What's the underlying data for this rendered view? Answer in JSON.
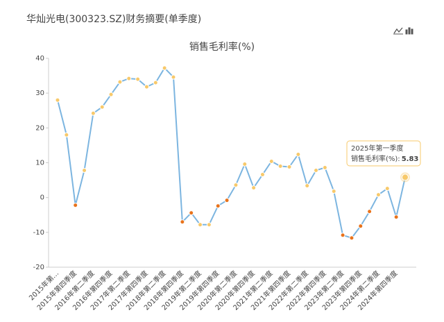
{
  "header": {
    "title": "华灿光电(300323.SZ)财务摘要(单季度)"
  },
  "chart_data": {
    "type": "line",
    "title": "销售毛利率(%)",
    "categories": [
      "2015年第…",
      null,
      "2015年第四季度",
      null,
      "2016年第二季度",
      null,
      "2016年第四季度",
      null,
      "2017年第二季度",
      null,
      "2017年第四季度",
      null,
      "2018年第二季度",
      null,
      "2018年第四季度",
      null,
      "2019年第二季度",
      null,
      "2019年第四季度",
      null,
      "2020年第二季度",
      null,
      "2020年第四季度",
      null,
      "2021年第二季度",
      null,
      "2021年第四季度",
      null,
      "2022年第二季度",
      null,
      "2022年第四季度",
      null,
      "2023年第二季度",
      null,
      "2023年第四季度",
      null,
      "2024年第二季度",
      null,
      "2024年第四季度",
      "2025年第一季度"
    ],
    "series": [
      {
        "name": "销售毛利率(%)",
        "color": "#7cb5e0",
        "values": [
          28,
          18,
          -2.2,
          7.8,
          24.2,
          26,
          29.6,
          33.2,
          34.2,
          34,
          31.8,
          33,
          37.2,
          34.6,
          -7,
          -4.4,
          -7.8,
          -7.8,
          -2.4,
          -0.8,
          3.6,
          9.6,
          2.8,
          6.6,
          10.4,
          9,
          8.8,
          12.4,
          3.4,
          7.8,
          8.6,
          1.8,
          -10.8,
          -11.6,
          -8.2,
          -4,
          0.8,
          2.6,
          -5.6,
          5.83
        ],
        "marker_colors": [
          "#f7c96b",
          "#f7c96b",
          "#e8731c",
          "#f7c96b",
          "#f7c96b",
          "#f7c96b",
          "#f7c96b",
          "#f7c96b",
          "#f7c96b",
          "#f7c96b",
          "#f7c96b",
          "#f7c96b",
          "#f7c96b",
          "#f7c96b",
          "#e8731c",
          "#e8731c",
          "#f7c96b",
          "#f7c96b",
          "#e8731c",
          "#e8731c",
          "#f7c96b",
          "#f7c96b",
          "#f7c96b",
          "#f7c96b",
          "#f7c96b",
          "#f7c96b",
          "#f7c96b",
          "#f7c96b",
          "#f7c96b",
          "#f7c96b",
          "#f7c96b",
          "#f7c96b",
          "#e8731c",
          "#e8731c",
          "#e8731c",
          "#e8731c",
          "#f7c96b",
          "#f7c96b",
          "#e8731c",
          "#f7c96b"
        ]
      }
    ],
    "ylim": [
      -20,
      40
    ],
    "yticks": [
      -20,
      -10,
      0,
      10,
      20,
      30,
      40
    ],
    "tooltip": {
      "label": "销售毛利率(%):"
    }
  }
}
